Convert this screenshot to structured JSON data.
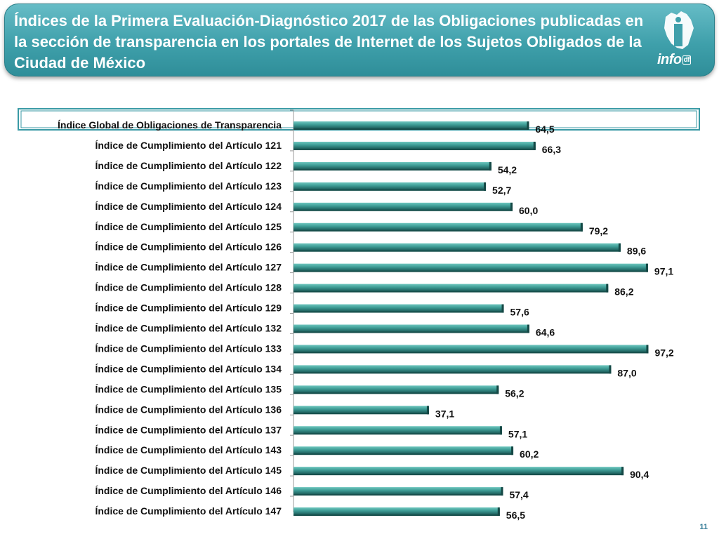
{
  "title": "Índices de la Primera Evaluación-Diagnóstico 2017 de las Obligaciones publicadas en la sección de transparencia en los portales de Internet de los Sujetos Obligados de la Ciudad de México",
  "logo": {
    "text": "info",
    "sub": "df",
    "icon": "cdmx-map-logo-icon"
  },
  "page_number": "11",
  "colors": {
    "banner": "#3fa0ab",
    "bar_dark": "#1f6d6a",
    "bar_light": "#4fb0a8",
    "highlight_border": "#3a9aa5"
  },
  "chart_data": {
    "type": "bar",
    "orientation": "horizontal",
    "categories": [
      "Índice Global de Obligaciones de Transparencia",
      "Índice de Cumplimiento del Artículo 121",
      "Índice de Cumplimiento del Artículo 122",
      "Índice de Cumplimiento del Artículo 123",
      "Índice de Cumplimiento del Artículo 124",
      "Índice de Cumplimiento del Artículo 125",
      "Índice de Cumplimiento del Artículo 126",
      "Índice de Cumplimiento del Artículo 127",
      "Índice de Cumplimiento del Artículo 128",
      "Índice de Cumplimiento del Artículo 129",
      "Índice de Cumplimiento del Artículo 132",
      "Índice de Cumplimiento del Artículo 133",
      "Índice de Cumplimiento del Artículo 134",
      "Índice de Cumplimiento del Artículo 135",
      "Índice de Cumplimiento del Artículo 136",
      "Índice de Cumplimiento del Artículo 137",
      "Índice de Cumplimiento del Artículo 143",
      "Índice de Cumplimiento del Artículo 145",
      "Índice de Cumplimiento del Artículo 146",
      "Índice de Cumplimiento del Artículo 147"
    ],
    "values": [
      64.5,
      66.3,
      54.2,
      52.7,
      60.0,
      79.2,
      89.6,
      97.1,
      86.2,
      57.6,
      64.6,
      97.2,
      87.0,
      56.2,
      37.1,
      57.1,
      60.2,
      90.4,
      57.4,
      56.5
    ],
    "value_labels": [
      "64,5",
      "66,3",
      "54,2",
      "52,7",
      "60,0",
      "79,2",
      "89,6",
      "97,1",
      "86,2",
      "57,6",
      "64,6",
      "97,2",
      "87,0",
      "56,2",
      "37,1",
      "57,1",
      "60,2",
      "90,4",
      "57,4",
      "56,5"
    ],
    "highlighted_category": "Índice Global de Obligaciones de Transparencia",
    "xlim": [
      0,
      100
    ],
    "grid": false,
    "legend": "none",
    "xlabel": "",
    "ylabel": ""
  }
}
